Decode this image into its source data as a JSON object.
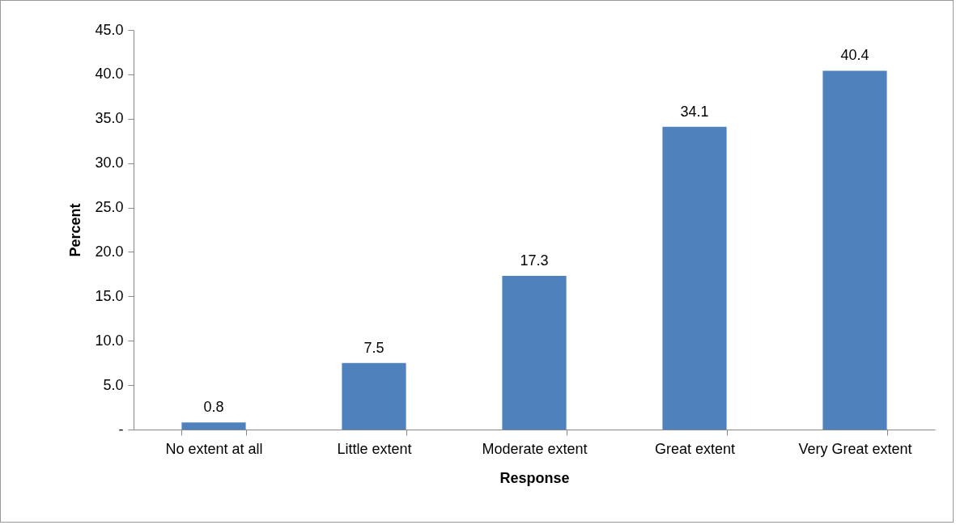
{
  "chart_data": {
    "type": "bar",
    "categories": [
      "No extent at all",
      "Little extent",
      "Moderate extent",
      "Great extent",
      "Very Great extent"
    ],
    "values": [
      0.8,
      7.5,
      17.3,
      34.1,
      40.4
    ],
    "color": "#4f81bd",
    "xlabel": "Response",
    "ylabel": "Percent",
    "ylim": [
      0,
      45
    ],
    "yticks": [
      {
        "value": 0,
        "label": "-"
      },
      {
        "value": 5,
        "label": "5.0"
      },
      {
        "value": 10,
        "label": "10.0"
      },
      {
        "value": 15,
        "label": "15.0"
      },
      {
        "value": 20,
        "label": "20.0"
      },
      {
        "value": 25,
        "label": "25.0"
      },
      {
        "value": 30,
        "label": "30.0"
      },
      {
        "value": 35,
        "label": "35.0"
      },
      {
        "value": 40,
        "label": "40.0"
      },
      {
        "value": 45,
        "label": "45.0"
      }
    ],
    "data_labels": true,
    "grid": false
  }
}
